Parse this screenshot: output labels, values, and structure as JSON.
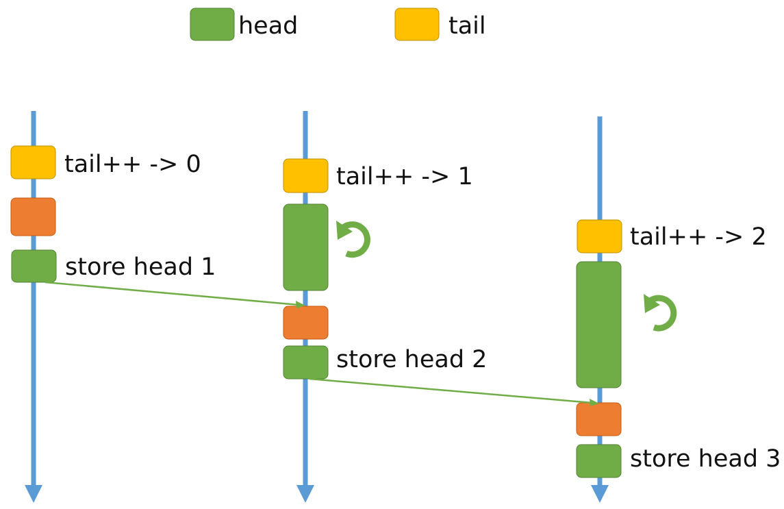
{
  "legend": {
    "head_label": "head",
    "tail_label": "tail"
  },
  "colors": {
    "head": "#70AD47",
    "tail": "#FFC000",
    "work": "#ED7D31",
    "timeline": "#5B9BD5",
    "arrow": "#70AD47"
  },
  "threads": [
    {
      "tail_label": "tail++ -> 0",
      "store_label": "store head 1"
    },
    {
      "tail_label": "tail++ -> 1",
      "store_label": "store head 2"
    },
    {
      "tail_label": "tail++ -> 2",
      "store_label": "store head 3"
    }
  ],
  "icons": {
    "spin": "rotate-arrow-icon"
  }
}
